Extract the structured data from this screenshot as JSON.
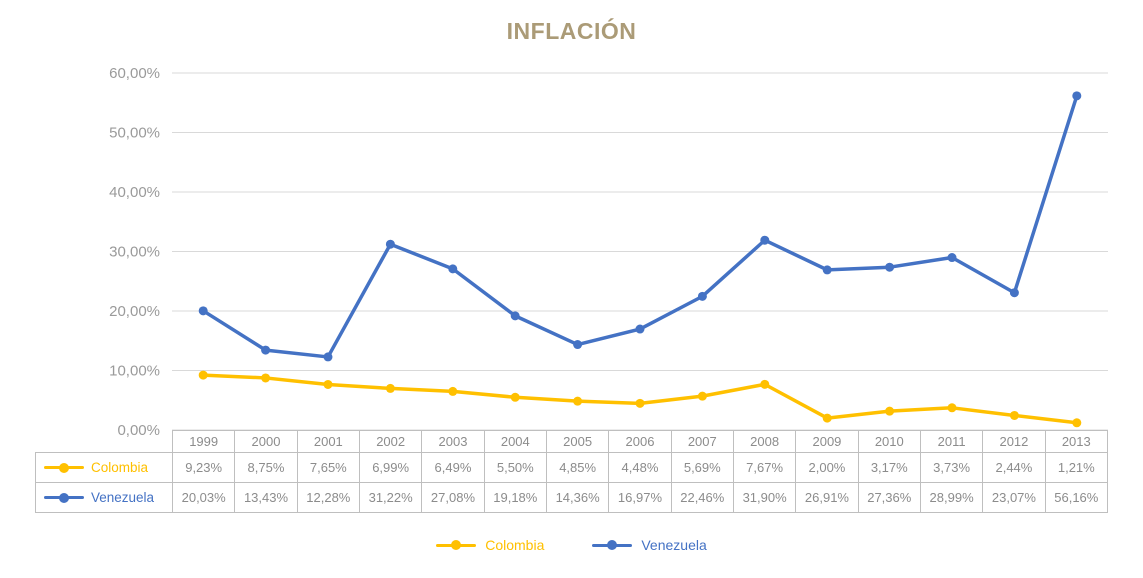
{
  "title": "INFLACIÓN",
  "colors": {
    "title_text": "#ab9b77",
    "grid": "#d9d9d9",
    "axis_text": "#9a9a9a",
    "table_text": "#8c8c8c",
    "table_border": "#bfbfbf",
    "colombia": "#ffc000",
    "venezuela": "#4472c4",
    "background": "#ffffff"
  },
  "chart_data": {
    "type": "line",
    "title": "INFLACIÓN",
    "xlabel": "",
    "ylabel": "",
    "ylim": [
      0,
      60
    ],
    "ytick_step": 10,
    "ytick_labels": [
      "0,00%",
      "10,00%",
      "20,00%",
      "30,00%",
      "40,00%",
      "50,00%",
      "60,00%"
    ],
    "grid": true,
    "legend_position": "bottom",
    "categories": [
      "1999",
      "2000",
      "2001",
      "2002",
      "2003",
      "2004",
      "2005",
      "2006",
      "2007",
      "2008",
      "2009",
      "2010",
      "2011",
      "2012",
      "2013"
    ],
    "series": [
      {
        "name": "Colombia",
        "color": "#ffc000",
        "values": [
          9.23,
          8.75,
          7.65,
          6.99,
          6.49,
          5.5,
          4.85,
          4.48,
          5.69,
          7.67,
          2.0,
          3.17,
          3.73,
          2.44,
          1.21
        ],
        "labels": [
          "9,23%",
          "8,75%",
          "7,65%",
          "6,99%",
          "6,49%",
          "5,50%",
          "4,85%",
          "4,48%",
          "5,69%",
          "7,67%",
          "2,00%",
          "3,17%",
          "3,73%",
          "2,44%",
          "1,21%"
        ]
      },
      {
        "name": "Venezuela",
        "color": "#4472c4",
        "values": [
          20.03,
          13.43,
          12.28,
          31.22,
          27.08,
          19.18,
          14.36,
          16.97,
          22.46,
          31.9,
          26.91,
          27.36,
          28.99,
          23.07,
          56.16
        ],
        "labels": [
          "20,03%",
          "13,43%",
          "12,28%",
          "31,22%",
          "27,08%",
          "19,18%",
          "14,36%",
          "16,97%",
          "22,46%",
          "31,90%",
          "26,91%",
          "27,36%",
          "28,99%",
          "23,07%",
          "56,16%"
        ]
      }
    ]
  },
  "legend": {
    "items": [
      {
        "label": "Colombia"
      },
      {
        "label": "Venezuela"
      }
    ]
  }
}
